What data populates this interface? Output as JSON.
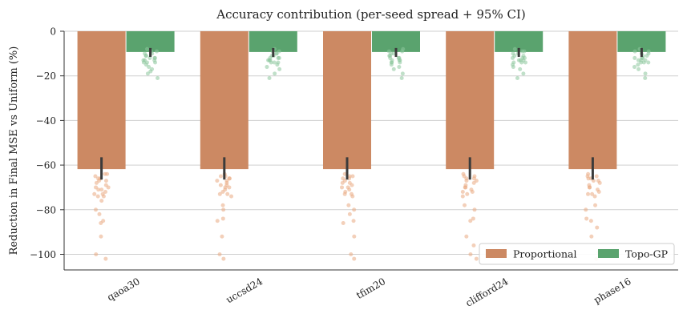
{
  "chart_data": {
    "type": "bar",
    "title": "Accuracy contribution (per-seed spread + 95% CI)",
    "xlabel": "",
    "ylabel": "Reduction in Final MSE vs Uniform (%)",
    "ylim": [
      -107,
      0
    ],
    "yticks": [
      0,
      -20,
      -40,
      -60,
      -80,
      -100
    ],
    "ytick_labels": [
      "0",
      "−20",
      "−40",
      "−60",
      "−80",
      "−100"
    ],
    "grid": true,
    "legend_position": "bottom-right",
    "categories": [
      "qaoa30",
      "uccsd24",
      "tfim20",
      "clifford24",
      "phase16"
    ],
    "series": [
      {
        "name": "Proportional",
        "color": "#cc8963",
        "point_color": "#e9a981",
        "values": [
          -61.8,
          -61.8,
          -61.8,
          -61.8,
          -61.8
        ],
        "ci": [
          [
            -66.5,
            -56.5
          ],
          [
            -66.5,
            -56.5
          ],
          [
            -66.5,
            -56.5
          ],
          [
            -66.5,
            -56.5
          ],
          [
            -66.5,
            -56.5
          ]
        ],
        "seed_points": [
          [
            -64,
            -65,
            -66,
            -67,
            -68,
            -69,
            -70,
            -70,
            -71,
            -72,
            -73,
            -74,
            -74,
            -76,
            -80,
            -82,
            -85,
            -86,
            -92,
            -100,
            -102,
            -64,
            -67,
            -71,
            -73,
            -66
          ],
          [
            -64,
            -65,
            -66,
            -67,
            -68,
            -69,
            -70,
            -71,
            -72,
            -73,
            -74,
            -78,
            -80,
            -84,
            -85,
            -92,
            -100,
            -102,
            -66,
            -69,
            -70,
            -73,
            -67,
            -65
          ],
          [
            -64,
            -65,
            -66,
            -67,
            -68,
            -69,
            -70,
            -71,
            -72,
            -73,
            -74,
            -78,
            -80,
            -82,
            -85,
            -86,
            -92,
            -100,
            -102,
            -66,
            -70,
            -73,
            -68,
            -65
          ],
          [
            -64,
            -65,
            -66,
            -67,
            -68,
            -69,
            -70,
            -71,
            -72,
            -73,
            -74,
            -78,
            -80,
            -84,
            -85,
            -92,
            -96,
            -100,
            -102,
            -66,
            -70,
            -72,
            -67,
            -65
          ],
          [
            -64,
            -65,
            -66,
            -67,
            -68,
            -69,
            -70,
            -71,
            -72,
            -73,
            -74,
            -78,
            -80,
            -84,
            -85,
            -88,
            -92,
            -99,
            -102,
            -66,
            -70,
            -73,
            -67,
            -65
          ]
        ]
      },
      {
        "name": "Topo-GP",
        "color": "#5aa36e",
        "point_color": "#8cc79d",
        "values": [
          -9.3,
          -9.3,
          -9.3,
          -9.3,
          -9.3
        ],
        "ci": [
          [
            -11.5,
            -7.5
          ],
          [
            -11.5,
            -7.5
          ],
          [
            -11.5,
            -7.5
          ],
          [
            -11.5,
            -7.5
          ],
          [
            -11.5,
            -7.5
          ]
        ],
        "seed_points": [
          [
            -8,
            -9,
            -10,
            -10,
            -11,
            -12,
            -12,
            -13,
            -13,
            -14,
            -14,
            -15,
            -16,
            -17,
            -18,
            -19,
            -21,
            -9,
            -11,
            -13,
            -12,
            -14
          ],
          [
            -8,
            -9,
            -10,
            -10,
            -11,
            -12,
            -12,
            -13,
            -13,
            -14,
            -14,
            -15,
            -16,
            -17,
            -19,
            -21,
            -9,
            -11,
            -13,
            -12,
            -14
          ],
          [
            -8,
            -9,
            -10,
            -10,
            -11,
            -12,
            -12,
            -13,
            -13,
            -14,
            -14,
            -15,
            -16,
            -17,
            -19,
            -21,
            -9,
            -11,
            -13,
            -12,
            -14
          ],
          [
            -8,
            -9,
            -10,
            -10,
            -11,
            -12,
            -12,
            -13,
            -13,
            -14,
            -14,
            -15,
            -16,
            -17,
            -19,
            -21,
            -9,
            -11,
            -13,
            -12,
            -14
          ],
          [
            -8,
            -9,
            -10,
            -10,
            -11,
            -12,
            -12,
            -13,
            -13,
            -14,
            -14,
            -15,
            -16,
            -17,
            -19,
            -21,
            -9,
            -11,
            -13,
            -12,
            -14
          ]
        ]
      }
    ]
  }
}
